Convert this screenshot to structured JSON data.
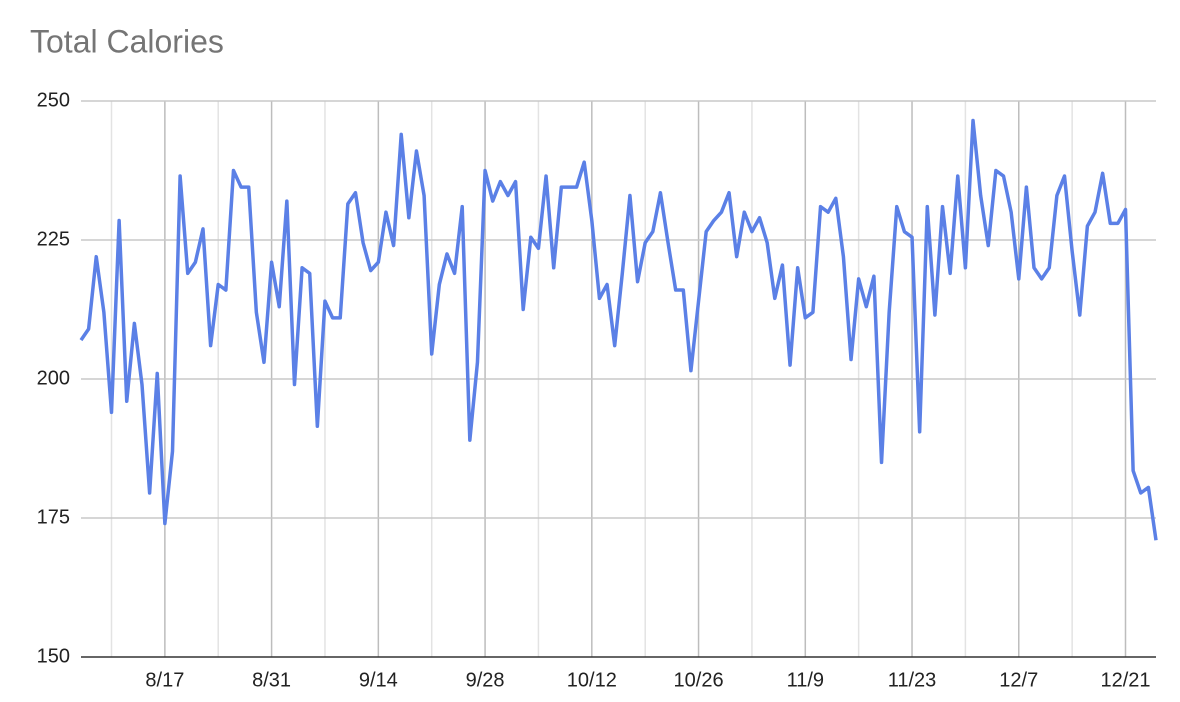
{
  "chart_data": {
    "type": "line",
    "title": "Total Calories",
    "categories": [
      null,
      null,
      null,
      null,
      null,
      null,
      null,
      null,
      null,
      null,
      null,
      "8/17",
      null,
      null,
      null,
      null,
      null,
      null,
      null,
      null,
      null,
      null,
      null,
      null,
      null,
      "8/31",
      null,
      null,
      null,
      null,
      null,
      null,
      null,
      null,
      null,
      null,
      null,
      null,
      null,
      "9/14",
      null,
      null,
      null,
      null,
      null,
      null,
      null,
      null,
      null,
      null,
      null,
      null,
      null,
      "9/28",
      null,
      null,
      null,
      null,
      null,
      null,
      null,
      null,
      null,
      null,
      null,
      null,
      null,
      "10/12",
      null,
      null,
      null,
      null,
      null,
      null,
      null,
      null,
      null,
      null,
      null,
      null,
      null,
      "10/26",
      null,
      null,
      null,
      null,
      null,
      null,
      null,
      null,
      null,
      null,
      null,
      null,
      null,
      "11/9",
      null,
      null,
      null,
      null,
      null,
      null,
      null,
      null,
      null,
      null,
      null,
      null,
      null,
      "11/23",
      null,
      null,
      null,
      null,
      null,
      null,
      null,
      null,
      null,
      null,
      null,
      null,
      null,
      "12/7",
      null,
      null,
      null,
      null,
      null,
      null,
      null,
      null,
      null,
      null,
      null,
      null,
      null,
      "12/21",
      null,
      null,
      null,
      null
    ],
    "values": [
      207,
      209,
      222,
      212,
      194,
      228.5,
      196,
      210,
      199,
      179.5,
      201,
      174,
      187,
      236.5,
      219,
      221,
      227,
      206,
      217,
      216,
      237.5,
      234.5,
      234.5,
      212,
      203,
      221,
      213,
      232,
      199,
      220,
      219,
      191.5,
      214,
      211,
      211,
      231.5,
      233.5,
      224.5,
      219.5,
      221,
      230,
      224,
      244,
      229,
      241,
      233,
      204.5,
      217,
      222.5,
      219,
      231,
      189,
      203,
      237.5,
      232,
      235.5,
      233,
      235.5,
      212.5,
      225.5,
      223.5,
      236.5,
      220,
      234.5,
      234.5,
      234.5,
      239,
      228.5,
      214.5,
      217,
      206,
      219,
      233,
      217.5,
      224.5,
      226.5,
      233.5,
      224.5,
      216,
      216,
      201.5,
      214,
      226.5,
      228.5,
      230,
      233.5,
      222,
      230,
      226.5,
      229,
      224.5,
      214.5,
      220.5,
      202.5,
      220,
      211,
      212,
      231,
      230,
      232.5,
      222,
      203.5,
      218,
      213,
      218.5,
      185,
      212,
      231,
      226.5,
      225.5,
      190.5,
      231,
      211.5,
      231,
      219,
      236.5,
      220,
      246.5,
      233,
      224,
      237.5,
      236.5,
      230,
      218,
      234.5,
      220,
      218,
      220,
      233,
      236.5,
      223,
      211.5,
      227.5,
      230,
      237,
      228,
      228,
      230.5,
      183.5,
      179.5,
      180.5,
      171
    ],
    "color": "#5b80e6",
    "ylim": [
      150,
      250
    ],
    "yticks": [
      150,
      175,
      200,
      225,
      250
    ],
    "grid": true
  }
}
